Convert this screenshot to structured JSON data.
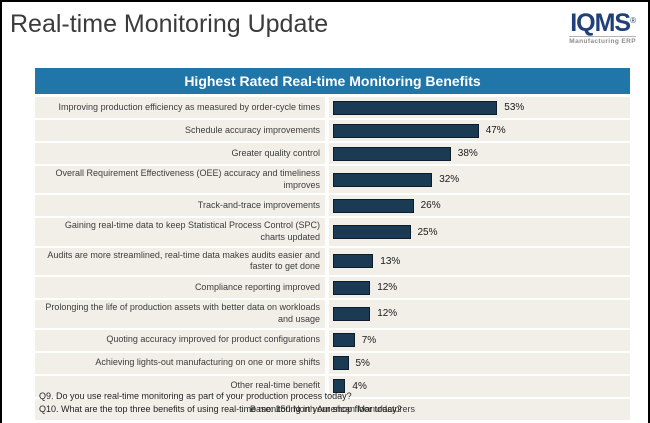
{
  "header": {
    "title": "Real-time Monitoring Update",
    "logo_text": "IQMS",
    "logo_reg": "®",
    "logo_subtext": "Manufacturing ERP"
  },
  "colors": {
    "chart_header_bg": "#2076a8",
    "bar_fill": "#1b3a54",
    "bar_border": "#0b1d2c",
    "panel_bg": "#f2efe9",
    "logo_blue": "#21407a"
  },
  "chart_data": {
    "type": "bar",
    "orientation": "horizontal",
    "title": "Highest Rated Real-time Monitoring Benefits",
    "categories": [
      "Improving production efficiency as measured by order-cycle times",
      "Schedule accuracy improvements",
      "Greater quality control",
      "Overall Requirement Effectiveness (OEE) accuracy and timeliness improves",
      "Track-and-trace improvements",
      "Gaining real-time data to keep Statistical Process Control (SPC) charts updated",
      "Audits are more streamlined, real-time data makes audits easier and faster to get done",
      "Compliance reporting improved",
      "Prolonging the life of production assets with better data on workloads and usage",
      "Quoting accuracy improved for product configurations",
      "Achieving lights-out manufacturing on one or more shifts",
      "Other real-time benefit"
    ],
    "values": [
      53,
      47,
      38,
      32,
      26,
      25,
      13,
      12,
      12,
      7,
      5,
      4
    ],
    "value_suffix": "%",
    "xlim": [
      0,
      60
    ],
    "grid": false,
    "legend": false,
    "base_note": "Base: 150 North American Manufacturers"
  },
  "footer": {
    "q9": "Q9. Do you use real-time monitoring as part of your production process today?",
    "q10": "Q10. What are the top three benefits of using real-time monitoring in your shop floor today?"
  }
}
